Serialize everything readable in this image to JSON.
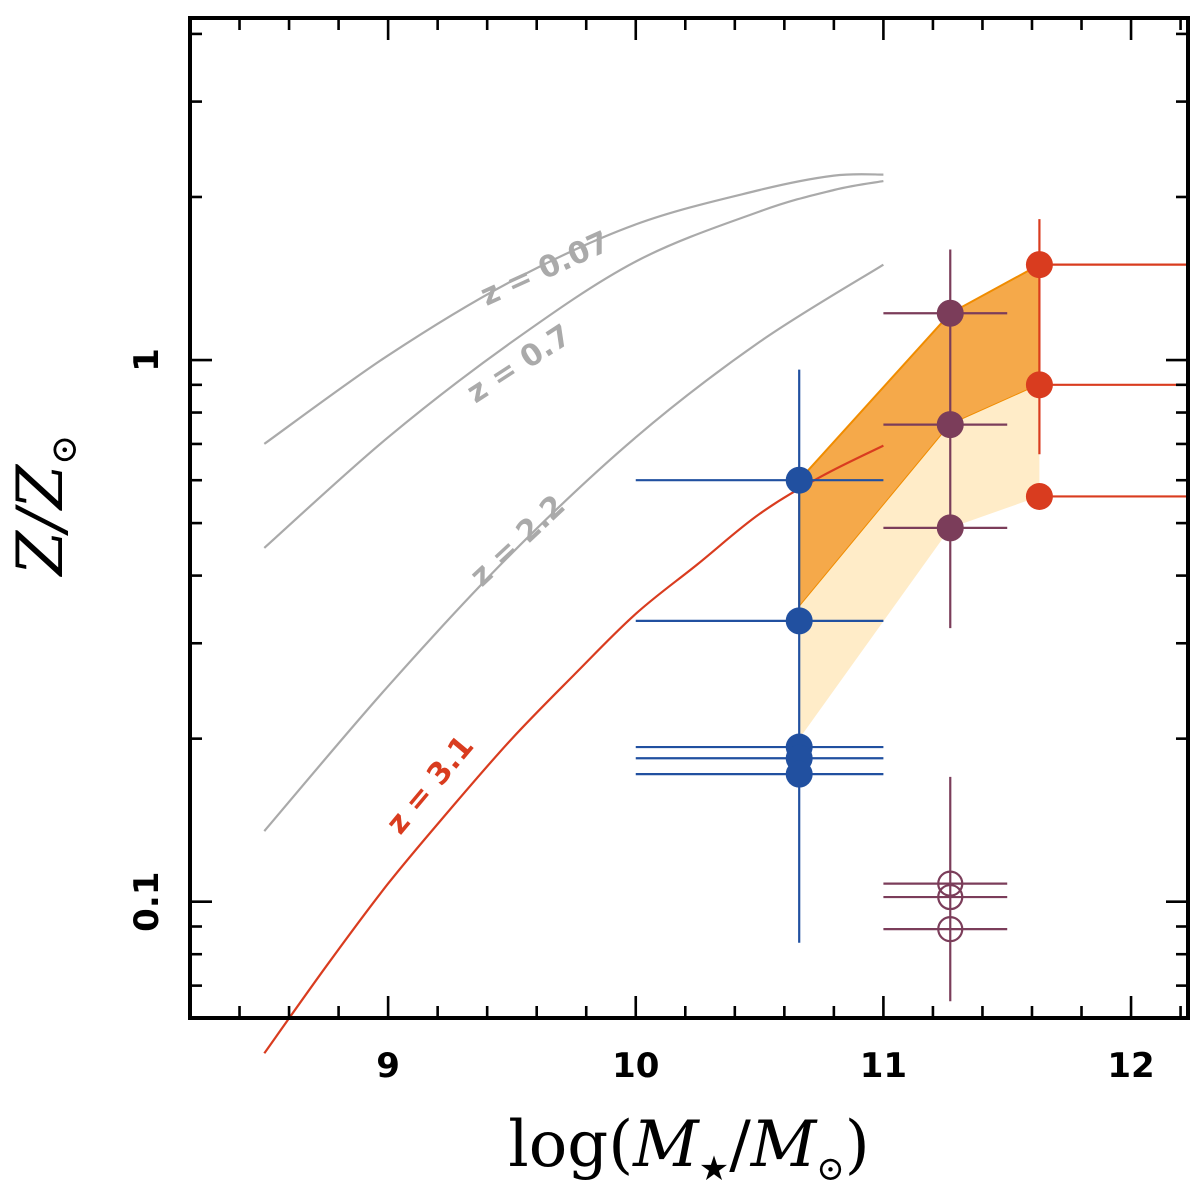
{
  "chart_data": {
    "type": "scatter",
    "xlabel": "log(M★/M⊙)",
    "xlabel_parts": {
      "prefix": "log(",
      "mass": "M",
      "sub_star": "★",
      "sep": "/",
      "mass2": "M",
      "sub_sun": "⊙",
      "suffix": ")"
    },
    "ylabel": "Z/Z⊙",
    "ylabel_parts": {
      "main": "Z/Z",
      "sub_sun": "⊙"
    },
    "xlim": [
      8.2,
      12.23
    ],
    "ylim": [
      0.061,
      4.28
    ],
    "yscale": "log",
    "x_major_ticks": [
      9,
      10,
      11,
      12
    ],
    "x_tick_labels": [
      "9",
      "10",
      "11",
      "12"
    ],
    "x_minor_step": 0.2,
    "y_labeled_ticks": [
      0.1,
      1
    ],
    "y_tick_labels": [
      "0.1",
      "1"
    ],
    "y_minor_ticks": [
      0.07,
      0.08,
      0.09,
      0.2,
      0.3,
      0.4,
      0.5,
      0.6,
      0.7,
      0.8,
      0.9,
      2,
      3,
      4
    ],
    "curves": [
      {
        "name": "mzr_z0.07",
        "label": "z = 0.07",
        "color": "#aaaaaa",
        "points": [
          [
            8.5,
            0.7
          ],
          [
            9.0,
            1.02
          ],
          [
            9.5,
            1.4
          ],
          [
            10.0,
            1.78
          ],
          [
            10.5,
            2.06
          ],
          [
            10.8,
            2.19
          ],
          [
            11.0,
            2.2
          ]
        ],
        "label_pos": [
          9.65,
          1.42
        ]
      },
      {
        "name": "mzr_z0.7",
        "label": "z = 0.7",
        "color": "#aaaaaa",
        "points": [
          [
            8.5,
            0.45
          ],
          [
            9.0,
            0.72
          ],
          [
            9.5,
            1.08
          ],
          [
            10.0,
            1.52
          ],
          [
            10.5,
            1.88
          ],
          [
            10.8,
            2.06
          ],
          [
            11.0,
            2.14
          ]
        ],
        "label_pos": [
          9.55,
          0.95
        ]
      },
      {
        "name": "mzr_z2.2",
        "label": "z = 2.2",
        "color": "#aaaaaa",
        "points": [
          [
            8.5,
            0.135
          ],
          [
            9.0,
            0.25
          ],
          [
            9.5,
            0.44
          ],
          [
            10.0,
            0.72
          ],
          [
            10.5,
            1.08
          ],
          [
            11.0,
            1.5
          ]
        ],
        "label_pos": [
          9.55,
          0.45
        ]
      },
      {
        "name": "mzr_z3.1",
        "label": "z = 3.1",
        "color": "#d93c1f",
        "points": [
          [
            8.5,
            0.0525
          ],
          [
            8.75,
            0.076
          ],
          [
            9.0,
            0.108
          ],
          [
            9.25,
            0.148
          ],
          [
            9.5,
            0.2
          ],
          [
            9.75,
            0.262
          ],
          [
            10.0,
            0.34
          ],
          [
            10.25,
            0.42
          ],
          [
            10.5,
            0.52
          ],
          [
            10.75,
            0.61
          ],
          [
            11.0,
            0.695
          ]
        ],
        "label_pos": [
          9.2,
          0.16
        ]
      }
    ],
    "bands": [
      {
        "name": "band_dark",
        "color": "#f5a94a",
        "edge": "#f08c00",
        "polygon": [
          [
            10.66,
            0.6
          ],
          [
            11.27,
            1.22
          ],
          [
            11.63,
            1.5
          ],
          [
            11.63,
            0.9
          ],
          [
            11.27,
            0.76
          ],
          [
            10.66,
            0.35
          ]
        ]
      },
      {
        "name": "band_light",
        "color": "#ffecc8",
        "polygon": [
          [
            10.66,
            0.35
          ],
          [
            11.27,
            0.76
          ],
          [
            11.63,
            0.9
          ],
          [
            11.63,
            0.56
          ],
          [
            11.27,
            0.49
          ],
          [
            10.66,
            0.2
          ]
        ]
      }
    ],
    "series": [
      {
        "name": "blue",
        "color": "#2150a0",
        "marker": "filled",
        "points": [
          {
            "x": 10.66,
            "y": 0.6,
            "xerr": [
              10.0,
              11.0
            ],
            "yerr": [
              0.084,
              0.96
            ]
          },
          {
            "x": 10.66,
            "y": 0.33,
            "xerr": [
              10.0,
              11.0
            ]
          },
          {
            "x": 10.66,
            "y": 0.193,
            "xerr": [
              10.0,
              11.0
            ]
          },
          {
            "x": 10.66,
            "y": 0.184,
            "xerr": [
              10.0,
              11.0
            ]
          },
          {
            "x": 10.66,
            "y": 0.172,
            "xerr": [
              10.0,
              11.0
            ]
          }
        ]
      },
      {
        "name": "purple",
        "color": "#7b3d5a",
        "marker": "filled",
        "points": [
          {
            "x": 11.27,
            "y": 1.22,
            "xerr": [
              11.0,
              11.5
            ],
            "yerr": [
              0.32,
              1.6
            ]
          },
          {
            "x": 11.27,
            "y": 0.76,
            "xerr": [
              11.0,
              11.5
            ]
          },
          {
            "x": 11.27,
            "y": 0.49,
            "xerr": [
              11.0,
              11.5
            ]
          }
        ]
      },
      {
        "name": "purple_open",
        "color": "#7b3d5a",
        "marker": "open",
        "points": [
          {
            "x": 11.27,
            "y": 0.108,
            "xerr": [
              11.0,
              11.5
            ],
            "yerr": [
              0.0655,
              0.17
            ]
          },
          {
            "x": 11.27,
            "y": 0.102,
            "xerr": [
              11.0,
              11.5
            ]
          },
          {
            "x": 11.27,
            "y": 0.089,
            "xerr": [
              11.0,
              11.5
            ]
          }
        ]
      },
      {
        "name": "red",
        "color": "#d93c1f",
        "marker": "filled",
        "points": [
          {
            "x": 11.63,
            "y": 1.5,
            "xerr": [
              11.63,
              12.23
            ],
            "yerr": [
              0.67,
              1.82
            ]
          },
          {
            "x": 11.63,
            "y": 0.9,
            "xerr": [
              11.63,
              12.23
            ]
          },
          {
            "x": 11.63,
            "y": 0.56,
            "xerr": [
              11.63,
              12.23
            ]
          }
        ]
      }
    ]
  }
}
